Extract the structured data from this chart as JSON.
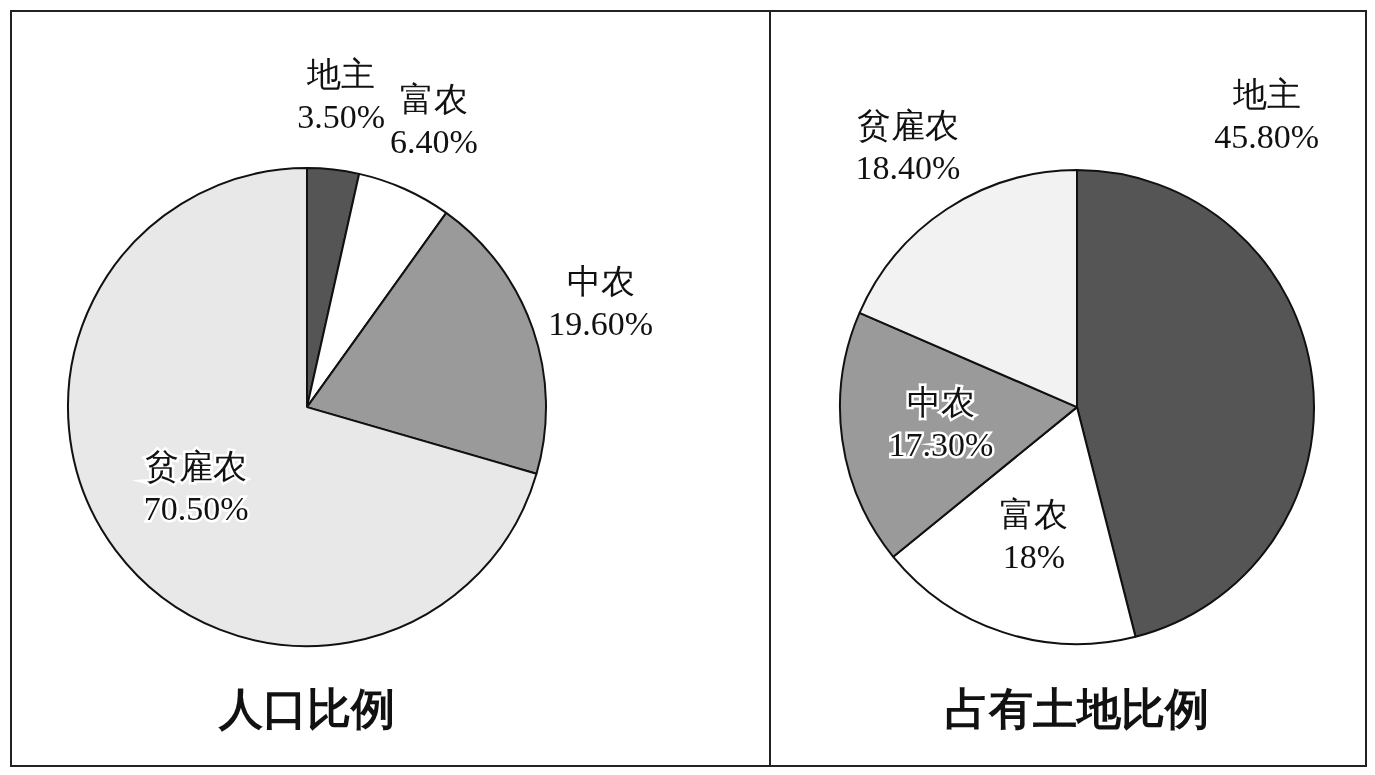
{
  "chart_data": [
    {
      "type": "pie",
      "title": "人口比例",
      "categories": [
        "地主",
        "富农",
        "中农",
        "贫雇农"
      ],
      "values": [
        3.5,
        6.4,
        19.6,
        70.5
      ],
      "colors": [
        "#555555",
        "#ffffff",
        "#9a9a9a",
        "#e8e8e8"
      ],
      "value_labels": [
        "3.50%",
        "6.40%",
        "19.60%",
        "70.50%"
      ],
      "legend": false
    },
    {
      "type": "pie",
      "title": "占有土地比例",
      "categories": [
        "地主",
        "富农",
        "中农",
        "贫雇农"
      ],
      "values": [
        45.8,
        18,
        17.3,
        18.4
      ],
      "colors": [
        "#555555",
        "#ffffff",
        "#9a9a9a",
        "#f2f2f2"
      ],
      "value_labels": [
        "45.80%",
        "18%",
        "17.30%",
        "18.40%"
      ],
      "legend": false
    }
  ]
}
